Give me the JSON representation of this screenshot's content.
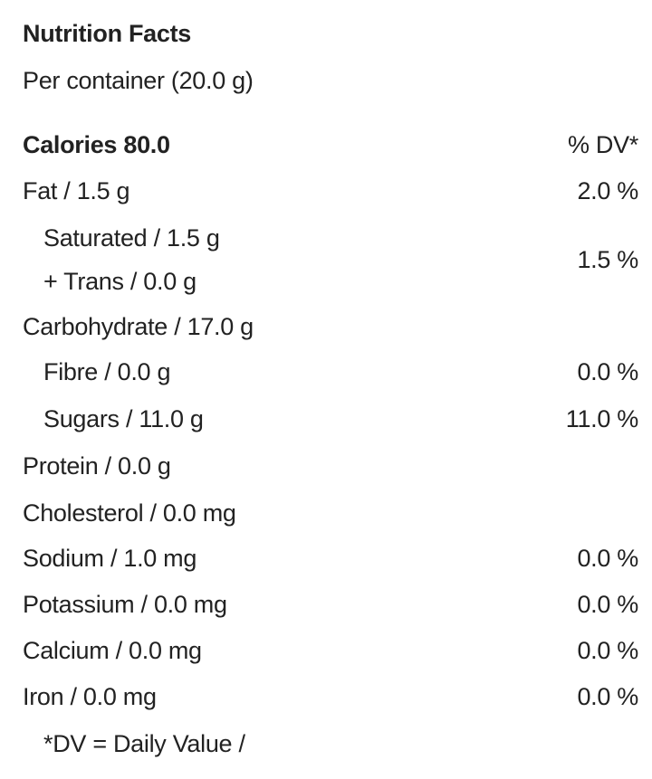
{
  "title": "Nutrition Facts",
  "serving": "Per container (20.0 g)",
  "calories": "Calories 80.0",
  "dv_header": "% DV*",
  "rows": [
    {
      "label": "Fat / 1.5 g",
      "dv": "2.0 %"
    },
    {
      "label": "Saturated / 1.5 g",
      "label2": "+ Trans / 0.0 g",
      "dv": "1.5 %"
    },
    {
      "label": "Carbohydrate / 17.0 g",
      "dv": ""
    },
    {
      "label": "Fibre / 0.0 g",
      "dv": "0.0 %"
    },
    {
      "label": "Sugars / 11.0 g",
      "dv": "11.0 %"
    },
    {
      "label": "Protein / 0.0 g",
      "dv": ""
    },
    {
      "label": "Cholesterol / 0.0 mg",
      "dv": ""
    },
    {
      "label": "Sodium / 1.0 mg",
      "dv": "0.0 %"
    },
    {
      "label": "Potassium / 0.0 mg",
      "dv": "0.0 %"
    },
    {
      "label": "Calcium / 0.0 mg",
      "dv": "0.0 %"
    },
    {
      "label": "Iron / 0.0 mg",
      "dv": "0.0 %"
    }
  ],
  "footnote": "*DV = Daily Value /"
}
